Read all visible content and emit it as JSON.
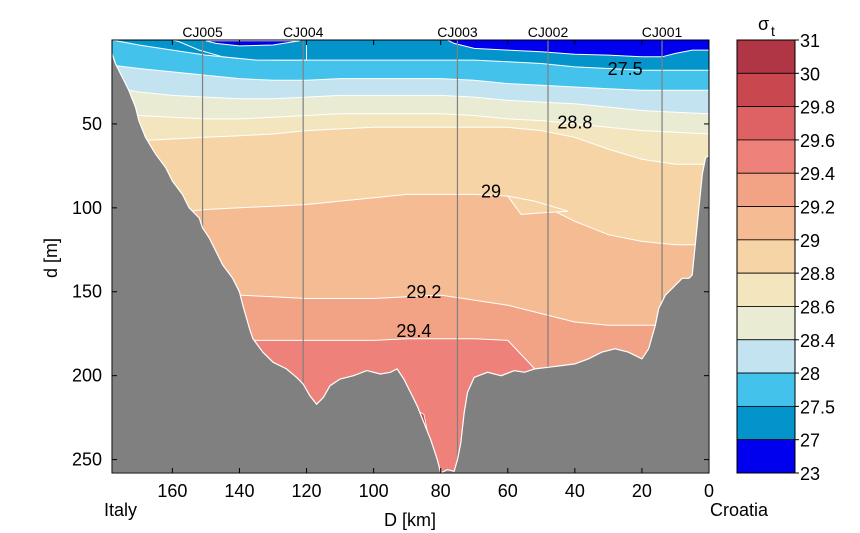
{
  "chart_data": {
    "type": "heatmap",
    "title": "",
    "xlabel": "D [km]",
    "ylabel": "d [m]",
    "xlim": [
      178,
      0
    ],
    "ylim": [
      0,
      258
    ],
    "x_ticks": [
      160,
      140,
      120,
      100,
      80,
      60,
      40,
      20,
      0
    ],
    "x_tick_labels": [
      "160",
      "140",
      "120",
      "100",
      "80",
      "60",
      "40",
      "20",
      "0"
    ],
    "y_ticks": [
      50,
      100,
      150,
      200,
      250
    ],
    "y_tick_labels": [
      "50",
      "100",
      "150",
      "200",
      "250"
    ],
    "left_annotation": "Italy",
    "right_annotation": "Croatia",
    "stations": [
      {
        "name": "CJ005",
        "distance_km": 151
      },
      {
        "name": "CJ004",
        "distance_km": 121
      },
      {
        "name": "CJ003",
        "distance_km": 75
      },
      {
        "name": "CJ002",
        "distance_km": 48
      },
      {
        "name": "CJ001",
        "distance_km": 14
      }
    ],
    "contour_labels": [
      {
        "text": "27.5",
        "distance_km": 25,
        "depth_m": 18
      },
      {
        "text": "28.8",
        "distance_km": 40,
        "depth_m": 50
      },
      {
        "text": "29",
        "distance_km": 65,
        "depth_m": 91
      },
      {
        "text": "29.2",
        "distance_km": 85,
        "depth_m": 151
      },
      {
        "text": "29.4",
        "distance_km": 88,
        "depth_m": 174
      }
    ],
    "colorbar": {
      "title": "σ",
      "title_subscript": "t",
      "levels": [
        "31",
        "30",
        "29.8",
        "29.6",
        "29.4",
        "29.2",
        "29",
        "28.8",
        "28.6",
        "28.4",
        "28",
        "27.5",
        "27",
        "23"
      ],
      "colors": [
        "#b03545",
        "#c94850",
        "#de6263",
        "#ee827a",
        "#f2a285",
        "#f5bc93",
        "#f7d4a5",
        "#f3e5bd",
        "#eaebd3",
        "#c2e3ef",
        "#43c3ec",
        "#0394cc",
        "#0000ee"
      ]
    },
    "bathymetry_color": "#808080",
    "contour_line_color": "#ffffff",
    "station_line_color": "#808080"
  }
}
